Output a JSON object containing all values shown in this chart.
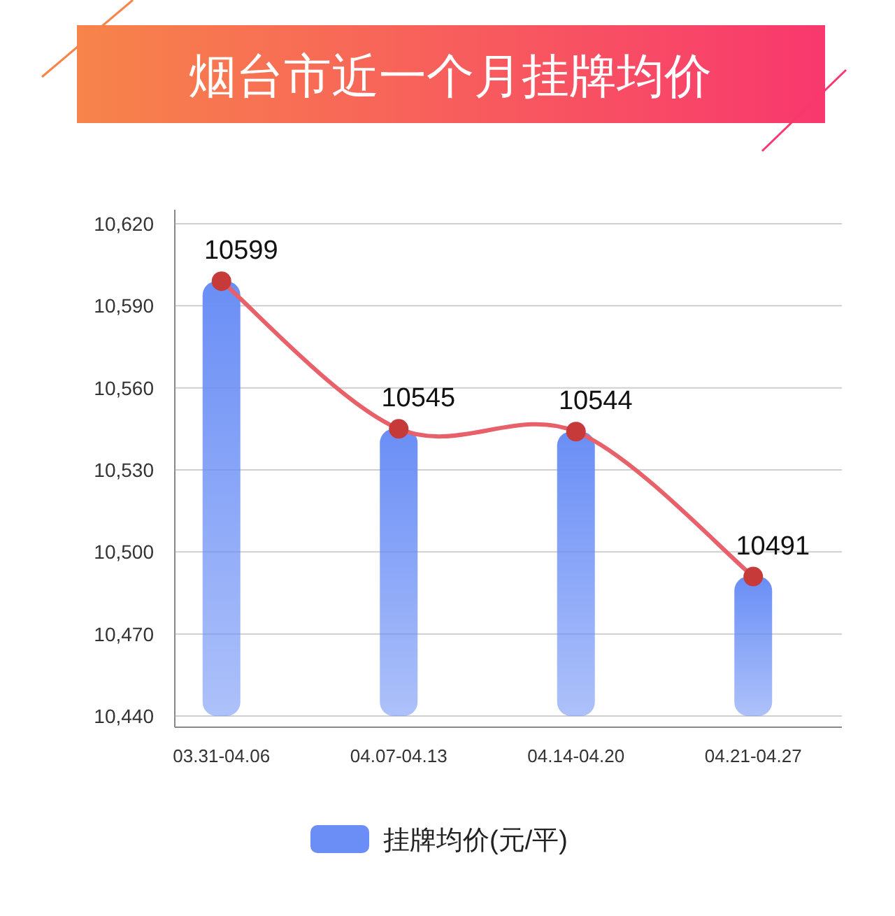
{
  "chart_data": {
    "type": "bar",
    "title": "烟台市近一个月挂牌均价",
    "categories": [
      "03.31-04.06",
      "04.07-04.13",
      "04.14-04.20",
      "04.21-04.27"
    ],
    "series": [
      {
        "name": "挂牌均价(元/平)",
        "color": "#6a8ef5",
        "values": [
          10599,
          10545,
          10544,
          10491
        ]
      },
      {
        "type": "line",
        "color": "#e8606a",
        "values": [
          10599,
          10545,
          10544,
          10491
        ],
        "value_labels": [
          "10599",
          "10545",
          "10544",
          "10491"
        ]
      }
    ],
    "ylim": [
      10440,
      10620
    ],
    "yticks": [
      {
        "value": 10440,
        "label": "10,440"
      },
      {
        "value": 10470,
        "label": "10,470"
      },
      {
        "value": 10500,
        "label": "10,500"
      },
      {
        "value": 10530,
        "label": "10,530"
      },
      {
        "value": 10560,
        "label": "10,560"
      },
      {
        "value": 10590,
        "label": "10,590"
      },
      {
        "value": 10620,
        "label": "10,620"
      }
    ],
    "grid": "y",
    "legend": "bottom",
    "marker": "circle"
  }
}
